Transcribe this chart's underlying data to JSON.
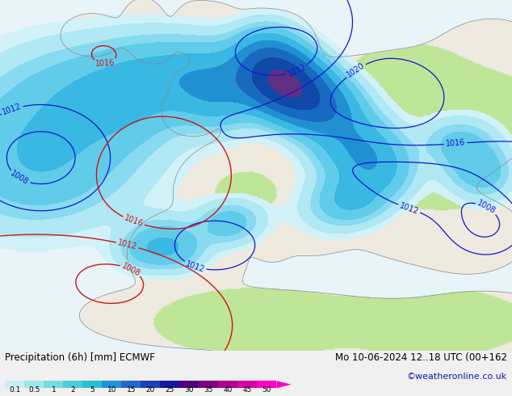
{
  "title_left": "Precipitation (6h) [mm] ECMWF",
  "title_right": "Mo 10-06-2024 12..18 UTC (00+162",
  "credit": "©weatheronline.co.uk",
  "colorbar_labels": [
    "0.1",
    "0.5",
    "1",
    "2",
    "5",
    "10",
    "15",
    "20",
    "25",
    "30",
    "35",
    "40",
    "45",
    "50"
  ],
  "colorbar_colors": [
    "#c8f0f0",
    "#a0e8e8",
    "#78dce0",
    "#50ccd8",
    "#28c0d0",
    "#2090d8",
    "#2068cc",
    "#2040b8",
    "#1818a0",
    "#500080",
    "#800080",
    "#b00090",
    "#d800a8",
    "#ff00c8"
  ],
  "fig_width": 6.34,
  "fig_height": 4.9,
  "dpi": 100,
  "bg_color": "#f0f0f0",
  "ocean_color": "#e8f4f8",
  "land_dry_color": "#f0ece8",
  "land_green_color": "#c8e8a0",
  "mountain_color": "#b8b8b8",
  "precip_light1": "#d0f0f4",
  "precip_light2": "#a8e4ec",
  "precip_med1": "#70d0e8",
  "precip_med2": "#40c0e0",
  "precip_med3": "#1890d8",
  "precip_heavy1": "#1060c8",
  "precip_heavy2": "#0838b0"
}
